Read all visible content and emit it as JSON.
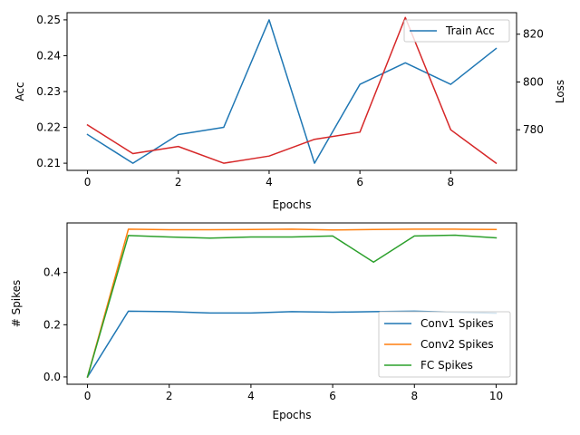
{
  "chart_data": [
    {
      "type": "line",
      "xlabel": "Epochs",
      "ylabel": "Acc",
      "ylabel_right": "Loss",
      "xlim": [
        -0.45,
        9.45
      ],
      "ylim": [
        0.208,
        0.252
      ],
      "ylim_right": [
        763,
        829
      ],
      "x_ticks": [
        0,
        2,
        4,
        6,
        8
      ],
      "y_ticks": [
        0.21,
        0.22,
        0.23,
        0.24,
        0.25
      ],
      "y_ticks_right": [
        780,
        800,
        820
      ],
      "legend_position": "top-right",
      "series": [
        {
          "name": "Train Acc",
          "axis": "left",
          "color": "#1f77b4",
          "x": [
            0,
            1,
            2,
            3,
            4,
            5,
            6,
            7,
            8,
            9
          ],
          "values": [
            0.218,
            0.21,
            0.218,
            0.22,
            0.25,
            0.21,
            0.232,
            0.238,
            0.232,
            0.242
          ]
        },
        {
          "axis": "right",
          "color": "#d62728",
          "x": [
            0,
            1,
            2,
            3,
            4,
            5,
            6,
            7,
            8,
            9
          ],
          "values": [
            782,
            770,
            773,
            766,
            769,
            776,
            779,
            827,
            780,
            766
          ]
        }
      ]
    },
    {
      "type": "line",
      "xlabel": "Epochs",
      "ylabel": "# Spikes",
      "xlim": [
        -0.5,
        10.5
      ],
      "ylim": [
        -0.028,
        0.59
      ],
      "x_ticks": [
        0,
        2,
        4,
        6,
        8,
        10
      ],
      "y_ticks": [
        0.0,
        0.2,
        0.4
      ],
      "legend_position": "lower-right",
      "series": [
        {
          "name": "Conv1 Spikes",
          "color": "#1f77b4",
          "x": [
            0,
            1,
            2,
            3,
            4,
            5,
            6,
            7,
            8,
            9,
            10
          ],
          "values": [
            0.0,
            0.252,
            0.25,
            0.245,
            0.245,
            0.25,
            0.248,
            0.25,
            0.252,
            0.248,
            0.244
          ]
        },
        {
          "name": "Conv2 Spikes",
          "color": "#ff7f0e",
          "x": [
            0,
            1,
            2,
            3,
            4,
            5,
            6,
            7,
            8,
            9,
            10
          ],
          "values": [
            0.0,
            0.566,
            0.564,
            0.564,
            0.565,
            0.566,
            0.563,
            0.565,
            0.566,
            0.566,
            0.565
          ]
        },
        {
          "name": "FC Spikes",
          "color": "#2ca02c",
          "x": [
            0,
            1,
            2,
            3,
            4,
            5,
            6,
            7,
            8,
            9,
            10
          ],
          "values": [
            0.0,
            0.542,
            0.536,
            0.532,
            0.536,
            0.536,
            0.54,
            0.44,
            0.54,
            0.543,
            0.533
          ]
        }
      ]
    }
  ]
}
